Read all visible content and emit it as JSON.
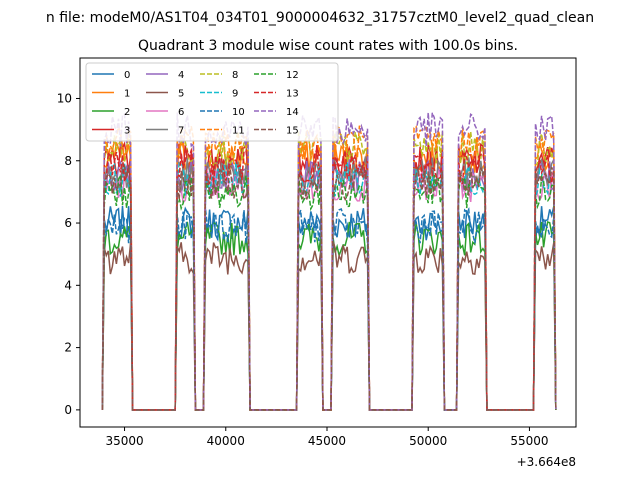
{
  "chart_data": {
    "type": "line",
    "suptitle": "n file: modeM0/AS1T04_034T01_9000004632_31757cztM0_level2_quad_clean",
    "title": "Quadrant 3 module wise count rates with 100.0s bins.",
    "xlabel": "",
    "ylabel": "",
    "offset_text": "+3.664e8",
    "xlim": [
      32800,
      57300
    ],
    "ylim": [
      -0.55,
      11.3
    ],
    "xticks": [
      35000,
      40000,
      45000,
      50000,
      55000
    ],
    "yticks": [
      0,
      2,
      4,
      6,
      8,
      10
    ],
    "grid": false,
    "legend_position": "top-left",
    "on_intervals": [
      [
        33900,
        35400
      ],
      [
        37500,
        38500
      ],
      [
        38900,
        41200
      ],
      [
        43500,
        44800
      ],
      [
        45200,
        47100
      ],
      [
        49200,
        50800
      ],
      [
        51400,
        52900
      ],
      [
        55200,
        56300
      ]
    ],
    "series": [
      {
        "name": "0",
        "level": 6.0,
        "color": "#1f77b4",
        "dash": "solid"
      },
      {
        "name": "1",
        "level": 8.1,
        "color": "#ff7f0e",
        "dash": "solid"
      },
      {
        "name": "2",
        "level": 5.5,
        "color": "#2ca02c",
        "dash": "solid"
      },
      {
        "name": "3",
        "level": 8.0,
        "color": "#d62728",
        "dash": "solid"
      },
      {
        "name": "4",
        "level": 7.5,
        "color": "#9467bd",
        "dash": "solid"
      },
      {
        "name": "5",
        "level": 4.9,
        "color": "#8c564b",
        "dash": "solid"
      },
      {
        "name": "6",
        "level": 7.2,
        "color": "#e377c2",
        "dash": "solid"
      },
      {
        "name": "7",
        "level": 7.6,
        "color": "#7f7f7f",
        "dash": "solid"
      },
      {
        "name": "8",
        "level": 8.4,
        "color": "#bcbd22",
        "dash": "dashed"
      },
      {
        "name": "9",
        "level": 7.4,
        "color": "#17becf",
        "dash": "dashed"
      },
      {
        "name": "10",
        "level": 5.9,
        "color": "#1f77b4",
        "dash": "dashed"
      },
      {
        "name": "11",
        "level": 8.6,
        "color": "#ff7f0e",
        "dash": "dashed"
      },
      {
        "name": "12",
        "level": 7.0,
        "color": "#2ca02c",
        "dash": "dashed"
      },
      {
        "name": "13",
        "level": 7.8,
        "color": "#d62728",
        "dash": "dashed"
      },
      {
        "name": "14",
        "level": 9.0,
        "color": "#9467bd",
        "dash": "dashed"
      },
      {
        "name": "15",
        "level": 7.3,
        "color": "#8c564b",
        "dash": "dashed"
      }
    ]
  }
}
